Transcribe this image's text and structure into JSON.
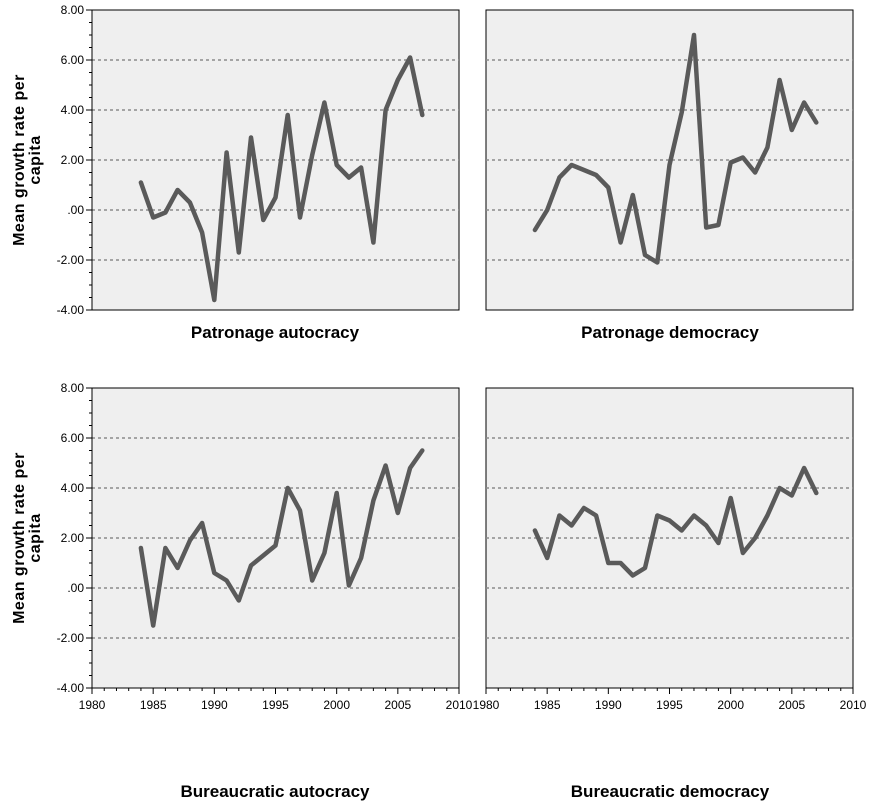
{
  "chart_data": {
    "type": "line",
    "layout": "2x2 small multiples",
    "ylabel": "Mean growth rate per capita",
    "ylim": [
      -4.0,
      8.0
    ],
    "yticks": [
      "8.00",
      "6.00",
      "4.00",
      "2.00",
      ".00",
      "-2.00",
      "-4.00"
    ],
    "xlim": [
      1980,
      2010
    ],
    "xticks": [
      "1980",
      "1985",
      "1990",
      "1995",
      "2000",
      "2005",
      "2010"
    ],
    "grid": "horizontal dotted",
    "line_color": "#5a5a5a",
    "panel_background": "#efefef",
    "panels": [
      {
        "title": "Patronage autocracy",
        "x": [
          1984,
          1985,
          1986,
          1987,
          1988,
          1989,
          1990,
          1991,
          1992,
          1993,
          1994,
          1995,
          1996,
          1997,
          1998,
          1999,
          2000,
          2001,
          2002,
          2003,
          2004,
          2005,
          2006,
          2007
        ],
        "values": [
          1.1,
          -0.3,
          -0.1,
          0.8,
          0.3,
          -0.9,
          -3.6,
          2.3,
          -1.7,
          2.9,
          -0.4,
          0.5,
          3.8,
          -0.3,
          2.2,
          4.3,
          1.8,
          1.3,
          1.7,
          -1.3,
          4.0,
          5.2,
          6.1,
          3.8
        ]
      },
      {
        "title": "Patronage democracy",
        "x": [
          1984,
          1985,
          1986,
          1987,
          1988,
          1989,
          1990,
          1991,
          1992,
          1993,
          1994,
          1995,
          1996,
          1997,
          1998,
          1999,
          2000,
          2001,
          2002,
          2003,
          2004,
          2005,
          2006,
          2007
        ],
        "values": [
          -0.8,
          0.0,
          1.3,
          1.8,
          1.6,
          1.4,
          0.9,
          -1.3,
          0.6,
          -1.8,
          -2.1,
          1.8,
          3.9,
          7.0,
          -0.7,
          -0.6,
          1.9,
          2.1,
          1.5,
          2.5,
          5.2,
          3.2,
          4.3,
          3.5
        ]
      },
      {
        "title": "Bureaucratic autocracy",
        "x": [
          1984,
          1985,
          1986,
          1987,
          1988,
          1989,
          1990,
          1991,
          1992,
          1993,
          1994,
          1995,
          1996,
          1997,
          1998,
          1999,
          2000,
          2001,
          2002,
          2003,
          2004,
          2005,
          2006,
          2007
        ],
        "values": [
          1.6,
          -1.5,
          1.6,
          0.8,
          1.9,
          2.6,
          0.6,
          0.3,
          -0.5,
          0.9,
          1.3,
          1.7,
          4.0,
          3.1,
          0.3,
          1.4,
          3.8,
          0.1,
          1.2,
          3.5,
          4.9,
          3.0,
          4.8,
          5.5
        ]
      },
      {
        "title": "Bureaucratic democracy",
        "x": [
          1984,
          1985,
          1986,
          1987,
          1988,
          1989,
          1990,
          1991,
          1992,
          1993,
          1994,
          1995,
          1996,
          1997,
          1998,
          1999,
          2000,
          2001,
          2002,
          2003,
          2004,
          2005,
          2006,
          2007
        ],
        "values": [
          2.3,
          1.2,
          2.9,
          2.5,
          3.2,
          2.9,
          1.0,
          1.0,
          0.5,
          0.8,
          2.9,
          2.7,
          2.3,
          2.9,
          2.5,
          1.8,
          3.6,
          1.4,
          2.0,
          2.9,
          4.0,
          3.7,
          4.8,
          3.8
        ]
      }
    ]
  }
}
